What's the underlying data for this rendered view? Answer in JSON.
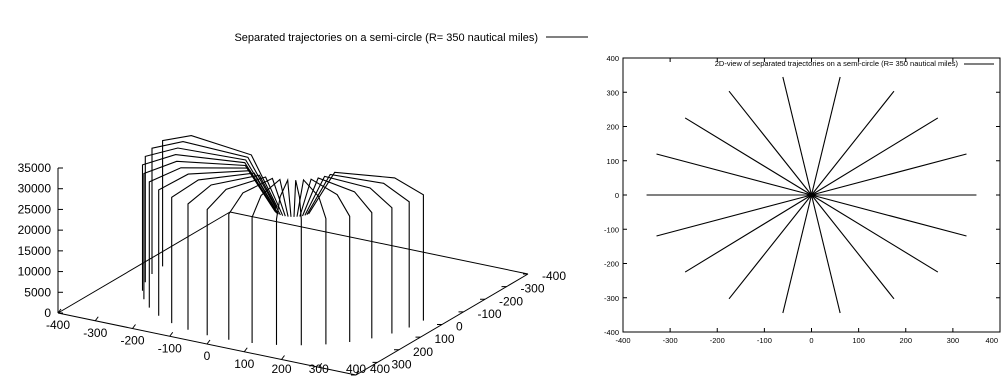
{
  "chart_data": [
    {
      "type": "line3d",
      "title": "Separated trajectories on a semi-circle (R= 350 nautical miles)",
      "legend": "top-right",
      "series_count": 20,
      "radius_nm": 350,
      "xlim": [
        -400,
        400
      ],
      "ylim": [
        -400,
        400
      ],
      "zlim": [
        0,
        35000
      ],
      "x_ticks": [
        -400,
        -300,
        -200,
        -100,
        0,
        100,
        200,
        300,
        400
      ],
      "y_ticks": [
        -400,
        -300,
        -200,
        -100,
        0,
        100,
        200,
        300,
        400
      ],
      "z_ticks": [
        0,
        5000,
        10000,
        15000,
        20000,
        25000,
        30000,
        35000
      ],
      "x_tick_labels": [
        "-400",
        "-300",
        "-200",
        "-100",
        "0",
        "100",
        "200",
        "300",
        "400"
      ],
      "y_tick_labels": [
        "-400",
        "-300",
        "-200",
        "-100",
        "0",
        "100",
        "200",
        "300",
        "400"
      ],
      "z_tick_labels": [
        "0",
        "5000",
        "10000",
        "15000",
        "20000",
        "25000",
        "30000",
        "35000"
      ],
      "cruise_altitude": 33000,
      "outer_altitude": 0,
      "center_altitude": 20000,
      "grid": false
    },
    {
      "type": "line",
      "title": "2D-view of separated trajectories on a semi-circle (R= 350 nautical miles)",
      "legend": "top-right",
      "xlim": [
        -400,
        400
      ],
      "ylim": [
        -400,
        400
      ],
      "x_ticks": [
        -400,
        -300,
        -200,
        -100,
        0,
        100,
        200,
        300,
        400
      ],
      "y_ticks": [
        -400,
        -300,
        -200,
        -100,
        0,
        100,
        200,
        300,
        400
      ],
      "x_tick_labels": [
        "-400",
        "-300",
        "-200",
        "-100",
        "0",
        "100",
        "200",
        "300",
        "400"
      ],
      "y_tick_labels": [
        "-400",
        "-300",
        "-200",
        "-100",
        "0",
        "100",
        "200",
        "300",
        "400"
      ],
      "radius_nm": 350,
      "spoke_count": 18,
      "grid": false
    }
  ]
}
